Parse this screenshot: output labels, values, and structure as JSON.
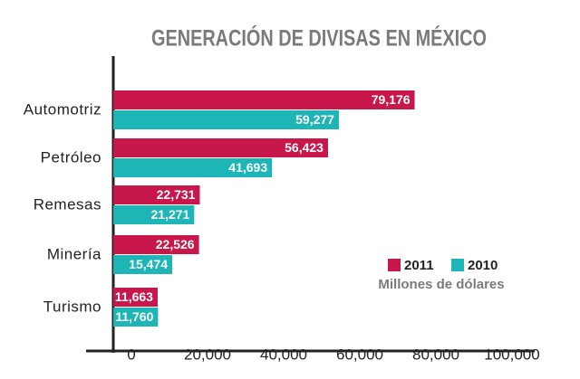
{
  "chart_data": {
    "type": "bar",
    "orientation": "horizontal",
    "title": "GENERACIÓN DE DIVISAS EN MÉXICO",
    "note": "Millones de dólares",
    "categories": [
      "Automotriz",
      "Petróleo",
      "Remesas",
      "Minería",
      "Turismo"
    ],
    "series": [
      {
        "name": "2011",
        "color": "#c8174a",
        "values": [
          79176,
          56423,
          22731,
          22526,
          11663
        ],
        "value_labels": [
          "79,176",
          "56,423",
          "22,731",
          "22,526",
          "11,663"
        ]
      },
      {
        "name": "2010",
        "color": "#1db5b5",
        "values": [
          59277,
          41693,
          21271,
          15474,
          11760
        ],
        "value_labels": [
          "59,277",
          "41,693",
          "21,271",
          "15,474",
          "11,760"
        ]
      }
    ],
    "xlim": [
      0,
      100000
    ],
    "xticks": [
      0,
      {
        "value": 20000,
        "label": "20,000"
      },
      {
        "value": 40000,
        "label": "40,000"
      },
      {
        "value": 60000,
        "label": "60,000"
      },
      {
        "value": 80000,
        "label": "80,000"
      },
      {
        "value": 100000,
        "label": "100,000"
      }
    ],
    "legend": "bottom-right"
  }
}
